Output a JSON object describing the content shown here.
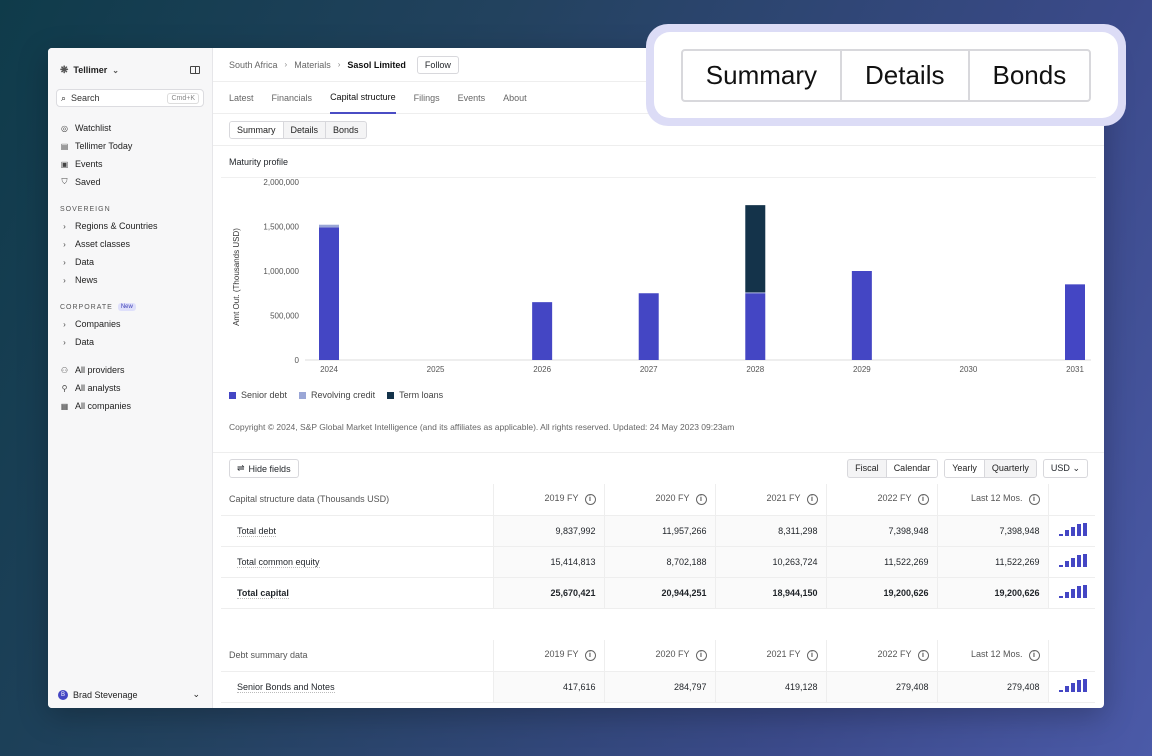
{
  "sidebar": {
    "brand": "Tellimer",
    "search": {
      "label": "Search",
      "shortcut": "Cmd+K"
    },
    "top_items": [
      {
        "label": "Watchlist",
        "icon": "eye-icon"
      },
      {
        "label": "Tellimer Today",
        "icon": "newspaper-icon"
      },
      {
        "label": "Events",
        "icon": "calendar-icon"
      },
      {
        "label": "Saved",
        "icon": "bookmark-icon"
      }
    ],
    "sovereign_label": "SOVEREIGN",
    "sovereign_items": [
      "Regions & Countries",
      "Asset classes",
      "Data",
      "News"
    ],
    "corporate_label": "CORPORATE",
    "corporate_badge": "New",
    "corporate_items": [
      "Companies",
      "Data"
    ],
    "bottom_items": [
      {
        "label": "All providers",
        "icon": "people-icon"
      },
      {
        "label": "All analysts",
        "icon": "person-icon"
      },
      {
        "label": "All companies",
        "icon": "building-icon"
      }
    ],
    "user": {
      "initial": "B",
      "name": "Brad Stevenage"
    }
  },
  "breadcrumb": [
    "South Africa",
    "Materials",
    "Sasol Limited"
  ],
  "follow_label": "Follow",
  "tabs": [
    "Latest",
    "Financials",
    "Capital structure",
    "Filings",
    "Events",
    "About"
  ],
  "active_tab": "Capital structure",
  "subtabs": [
    "Summary",
    "Details",
    "Bonds"
  ],
  "maturity_title": "Maturity profile",
  "chart_data": {
    "type": "bar",
    "stacked": true,
    "ylabel": "Amt Out. (Thousands USD)",
    "ylim": [
      0,
      2000000
    ],
    "yticks": [
      "0",
      "500,000",
      "1,000,000",
      "1,500,000",
      "2,000,000"
    ],
    "categories": [
      "2024",
      "2025",
      "2026",
      "2027",
      "2028",
      "2029",
      "2030",
      "2031"
    ],
    "series": [
      {
        "name": "Senior debt",
        "color": "#4446c4",
        "values": [
          1490000,
          0,
          650000,
          750000,
          750000,
          1000000,
          0,
          850000
        ]
      },
      {
        "name": "Revolving credit",
        "color": "#9aa6d6",
        "values": [
          30000,
          0,
          0,
          0,
          10000,
          0,
          0,
          0
        ]
      },
      {
        "name": "Term loans",
        "color": "#14334a",
        "values": [
          0,
          0,
          0,
          0,
          980000,
          0,
          0,
          0
        ]
      }
    ]
  },
  "copyright": "Copyright © 2024, S&P Global Market Intelligence (and its affiliates as applicable). All rights reserved. Updated: 24 May 2023 09:23am",
  "hide_fields": "Hide fields",
  "period_toggle": [
    "Fiscal",
    "Calendar"
  ],
  "freq_toggle": [
    "Yearly",
    "Quarterly"
  ],
  "currency": "USD",
  "capital_table": {
    "title": "Capital structure data (Thousands USD)",
    "columns": [
      "2019 FY",
      "2020 FY",
      "2021 FY",
      "2022 FY",
      "Last 12 Mos."
    ],
    "rows": [
      {
        "label": "Total debt",
        "values": [
          "9,837,992",
          "11,957,266",
          "8,311,298",
          "7,398,948",
          "7,398,948"
        ]
      },
      {
        "label": "Total common equity",
        "values": [
          "15,414,813",
          "8,702,188",
          "10,263,724",
          "11,522,269",
          "11,522,269"
        ]
      },
      {
        "label": "Total capital",
        "values": [
          "25,670,421",
          "20,944,251",
          "18,944,150",
          "19,200,626",
          "19,200,626"
        ]
      }
    ]
  },
  "debt_table": {
    "title": "Debt summary data",
    "columns": [
      "2019 FY",
      "2020 FY",
      "2021 FY",
      "2022 FY",
      "Last 12 Mos."
    ],
    "rows": [
      {
        "label": "Senior Bonds and Notes",
        "values": [
          "417,616",
          "284,797",
          "419,128",
          "279,408",
          "279,408"
        ]
      }
    ]
  },
  "zoom_callout": [
    "Summary",
    "Details",
    "Bonds"
  ]
}
